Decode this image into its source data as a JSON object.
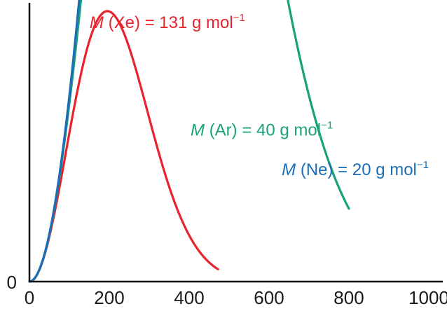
{
  "chart_data": {
    "type": "line",
    "title": "",
    "xlabel": "",
    "ylabel": "",
    "xlim": [
      0,
      1000
    ],
    "ylim": [
      0,
      1
    ],
    "x_ticks": [
      0,
      200,
      400,
      600,
      800,
      1000
    ],
    "x_tick_labels": [
      "0",
      "200",
      "400",
      "600",
      "800",
      "1000"
    ],
    "y_ticks": [
      0
    ],
    "y_tick_labels": [
      "0"
    ],
    "grid": false,
    "legend": "none",
    "series": [
      {
        "label": {
          "prefix": "M",
          "mid": " (Xe) = 131 g mol",
          "sup": "−1"
        },
        "color": "#e8232e",
        "molar_mass": 131,
        "x_max": 472,
        "label_anchor": {
          "x": 540,
          "y": 0.98
        }
      },
      {
        "label": {
          "prefix": "M",
          "mid": " (Ar) = 40 g mol",
          "sup": "−1"
        },
        "color": "#19a27a",
        "molar_mass": 40,
        "x_max": 800,
        "label_anchor": {
          "x": 760,
          "y": 0.59
        }
      },
      {
        "label": {
          "prefix": "M",
          "mid": " (Ne) = 20 g mol",
          "sup": "−1"
        },
        "color": "#1b6db5",
        "molar_mass": 20,
        "x_max": 1000,
        "label_anchor": {
          "x": 1000,
          "y": 0.447
        }
      }
    ]
  }
}
